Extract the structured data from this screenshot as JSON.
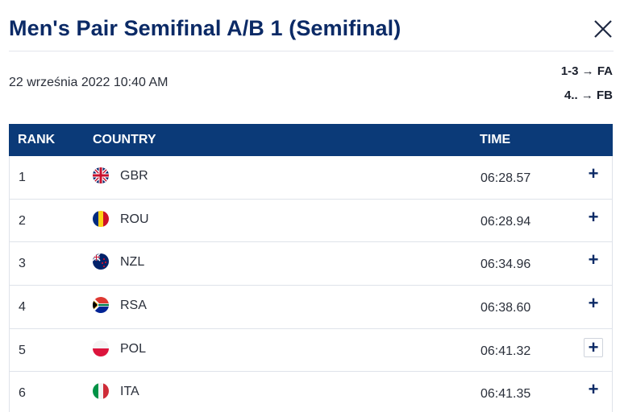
{
  "header": {
    "title": "Men's Pair Semifinal A/B 1 (Semifinal)",
    "close_icon": "close-icon"
  },
  "meta": {
    "datetime": "22 września 2022 10:40 AM",
    "progression": [
      "1-3 → FA",
      "4.. → FB"
    ]
  },
  "table": {
    "columns": [
      "RANK",
      "COUNTRY",
      "TIME"
    ],
    "header_color": "#0b3a78",
    "rows": [
      {
        "rank": "1",
        "country": "GBR",
        "time": "06:28.57",
        "flag_icon": "flag-gbr-icon"
      },
      {
        "rank": "2",
        "country": "ROU",
        "time": "06:28.94",
        "flag_icon": "flag-rou-icon"
      },
      {
        "rank": "3",
        "country": "NZL",
        "time": "06:34.96",
        "flag_icon": "flag-nzl-icon"
      },
      {
        "rank": "4",
        "country": "RSA",
        "time": "06:38.60",
        "flag_icon": "flag-rsa-icon"
      },
      {
        "rank": "5",
        "country": "POL",
        "time": "06:41.32",
        "flag_icon": "flag-pol-icon"
      },
      {
        "rank": "6",
        "country": "ITA",
        "time": "06:41.35",
        "flag_icon": "flag-ita-icon"
      }
    ],
    "expand_symbol": "+"
  }
}
